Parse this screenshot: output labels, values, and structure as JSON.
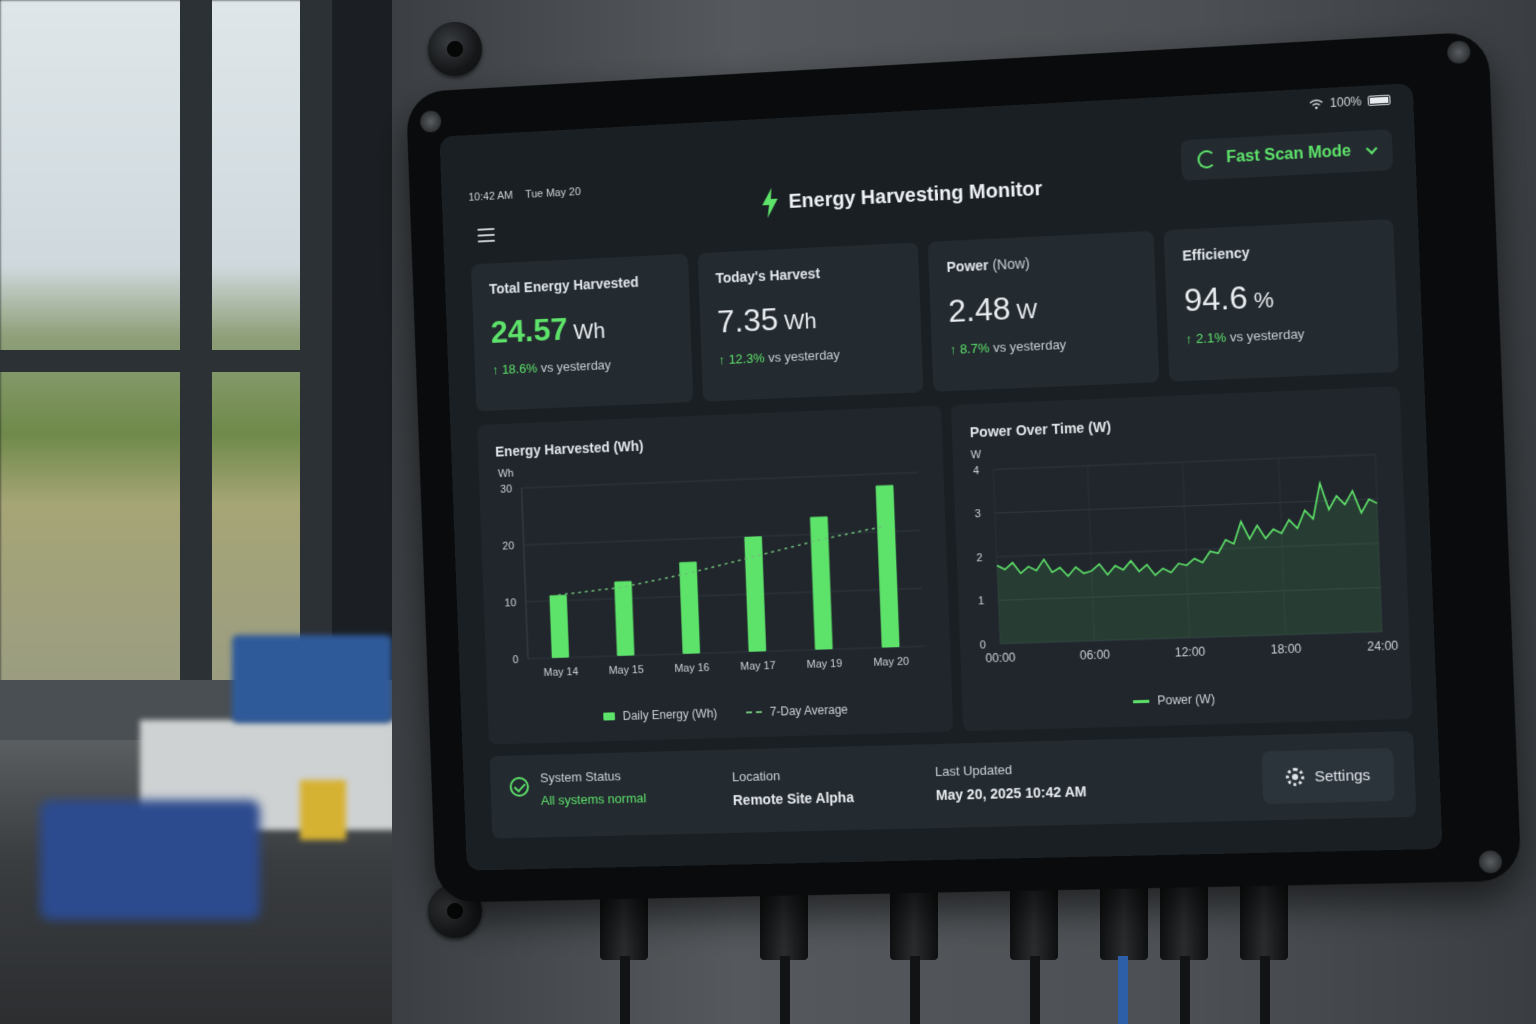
{
  "status_bar": {
    "time": "10:42 AM",
    "date": "Tue May 20",
    "battery": "100%"
  },
  "header": {
    "title": "Energy Harvesting Monitor",
    "mode_button": "Fast Scan Mode"
  },
  "cards": [
    {
      "label": "Total Energy Harvested",
      "label_extra": "",
      "value": "24.57",
      "unit": "Wh",
      "delta": "18.6%",
      "delta_suffix": "vs yesterday"
    },
    {
      "label": "Today's Harvest",
      "label_extra": "",
      "value": "7.35",
      "unit": "Wh",
      "delta": "12.3%",
      "delta_suffix": "vs yesterday"
    },
    {
      "label": "Power",
      "label_extra": "(Now)",
      "value": "2.48",
      "unit": "W",
      "delta": "8.7%",
      "delta_suffix": "vs yesterday"
    },
    {
      "label": "Efficiency",
      "label_extra": "",
      "value": "94.6",
      "unit": "%",
      "delta": "2.1%",
      "delta_suffix": "vs yesterday"
    }
  ],
  "chart_data": [
    {
      "type": "bar",
      "title": "Energy Harvested (Wh)",
      "ylabel": "Wh",
      "categories": [
        "May 14",
        "May 15",
        "May 16",
        "May 17",
        "May 19",
        "May 20"
      ],
      "series": [
        {
          "name": "Daily Energy (Wh)",
          "values": [
            11,
            13,
            16,
            20,
            23,
            28
          ]
        },
        {
          "name": "7-Day Average",
          "values": [
            11,
            12,
            14,
            16.5,
            19,
            21
          ]
        }
      ],
      "ylim": [
        0,
        30
      ],
      "yticks": [
        0,
        10,
        20,
        30
      ],
      "grid": true,
      "legend": "bottom"
    },
    {
      "type": "line",
      "title": "Power Over Time (W)",
      "ylabel": "W",
      "xticks": [
        "00:00",
        "06:00",
        "12:00",
        "18:00",
        "24:00"
      ],
      "x": [
        0,
        0.5,
        1,
        1.5,
        2,
        2.5,
        3,
        3.5,
        4,
        4.5,
        5,
        5.5,
        6,
        6.5,
        7,
        7.5,
        8,
        8.5,
        9,
        9.5,
        10,
        10.5,
        11,
        11.5,
        12,
        12.5,
        13,
        13.5,
        14,
        14.5,
        15,
        15.5,
        16,
        16.5,
        17,
        17.5,
        18,
        18.5,
        19,
        19.5,
        20,
        20.5,
        21,
        21.5,
        22,
        22.5,
        23,
        23.5,
        24
      ],
      "series": [
        {
          "name": "Power (W)",
          "values": [
            1.8,
            1.7,
            1.85,
            1.6,
            1.75,
            1.65,
            1.9,
            1.6,
            1.7,
            1.5,
            1.7,
            1.55,
            1.6,
            1.75,
            1.5,
            1.7,
            1.6,
            1.8,
            1.55,
            1.7,
            1.45,
            1.6,
            1.5,
            1.7,
            1.65,
            1.8,
            1.7,
            1.95,
            1.9,
            2.2,
            2.1,
            2.6,
            2.2,
            2.5,
            2.2,
            2.4,
            2.3,
            2.6,
            2.4,
            2.8,
            2.6,
            3.4,
            2.8,
            3.1,
            2.9,
            3.2,
            2.7,
            3.0,
            2.9
          ]
        }
      ],
      "ylim": [
        0,
        4
      ],
      "yticks": [
        0,
        1,
        2,
        3,
        4
      ],
      "xlim": [
        0,
        24
      ],
      "grid": true,
      "legend": "bottom"
    }
  ],
  "footer": {
    "status_label": "System Status",
    "status_value": "All systems normal",
    "location_label": "Location",
    "location_value": "Remote Site Alpha",
    "updated_label": "Last Updated",
    "updated_value": "May 20, 2025 10:42 AM",
    "settings_label": "Settings"
  },
  "colors": {
    "accent": "#5ee36a",
    "background": "#1a1f24",
    "card": "#232a30"
  }
}
